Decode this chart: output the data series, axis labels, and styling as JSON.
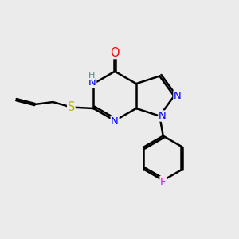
{
  "bg_color": "#ebebeb",
  "bond_color": "#000000",
  "atom_colors": {
    "N": "#0000ff",
    "O": "#ff0000",
    "S": "#b8b800",
    "F": "#ff00ff",
    "H": "#4a9090",
    "C": "#000000"
  },
  "bond_width": 1.8,
  "figsize": [
    3.0,
    3.0
  ],
  "dpi": 100,
  "xlim": [
    0,
    10
  ],
  "ylim": [
    0,
    10
  ]
}
